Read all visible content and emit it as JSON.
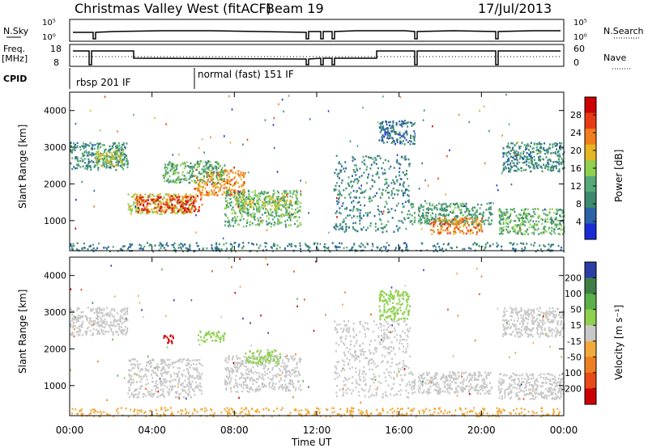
{
  "header": {
    "radar": "Christmas Valley West (fitACF)",
    "beam": "Beam 19",
    "date": "17/Jul/2013"
  },
  "status_panels": {
    "left_top": "N.Sky",
    "left_top_ticks": [
      "10^5",
      "10^0"
    ],
    "right_top": "N.Search",
    "right_top_ticks": [
      "10^5",
      "10^0"
    ],
    "left_mid": "Freq.",
    "left_mid_unit": "[MHz]",
    "left_mid_ticks": [
      "18",
      "8"
    ],
    "right_mid": "Nave",
    "right_mid_ticks": [
      "60",
      "0"
    ],
    "cpid_label": "CPID",
    "cpid_modes": [
      "rbsp 201 IF",
      "normal (fast) 151 IF"
    ]
  },
  "colors": {
    "power_scale": [
      "#1a2bd6",
      "#2c62a8",
      "#3d8a6e",
      "#55a878",
      "#8fd14f",
      "#e6b522",
      "#f07e1c",
      "#e83a16",
      "#cc0000"
    ],
    "velocity_scale": [
      "#2a3ea6",
      "#3f7f47",
      "#5cb04a",
      "#8fd14f",
      "#c8c8c8",
      "#f2a93b",
      "#ee7e22",
      "#e84a18",
      "#cc0000"
    ]
  },
  "chart_data": [
    {
      "type": "heatmap",
      "title": "",
      "xlabel": "Time UT",
      "ylabel": "Slant Range [km]",
      "x_ticks": [
        "00:00",
        "04:00",
        "08:00",
        "12:00",
        "16:00",
        "20:00",
        "00:00"
      ],
      "xlim_hours": [
        0,
        24
      ],
      "ylim": [
        180,
        4500
      ],
      "y_ticks": [
        "1000",
        "2000",
        "3000",
        "4000"
      ],
      "colorbar_label": "Power [dB]",
      "colorbar_ticks": [
        "4",
        "8",
        "12",
        "16",
        "20",
        "24",
        "28"
      ],
      "colorbar_range": [
        0,
        32
      ],
      "echo_regions": [
        {
          "t0": 0.0,
          "t1": 2.8,
          "r0": 2400,
          "r1": 3150,
          "v": 10
        },
        {
          "t0": 1.2,
          "t1": 2.6,
          "r0": 2500,
          "r1": 3000,
          "v": 17
        },
        {
          "t0": 2.8,
          "t1": 6.0,
          "r0": 1200,
          "r1": 1750,
          "v": 18
        },
        {
          "t0": 3.2,
          "t1": 6.4,
          "r0": 1250,
          "r1": 1700,
          "v": 27
        },
        {
          "t0": 6.0,
          "t1": 8.5,
          "r0": 1700,
          "r1": 2400,
          "v": 22
        },
        {
          "t0": 4.5,
          "t1": 7.5,
          "r0": 2050,
          "r1": 2650,
          "v": 12
        },
        {
          "t0": 7.5,
          "t1": 11.2,
          "r0": 850,
          "r1": 1850,
          "v": 13
        },
        {
          "t0": 8.0,
          "t1": 10.8,
          "r0": 1300,
          "r1": 1700,
          "v": 16
        },
        {
          "t0": 12.8,
          "t1": 16.5,
          "r0": 700,
          "r1": 2800,
          "v": 9
        },
        {
          "t0": 15.0,
          "t1": 16.8,
          "r0": 3100,
          "r1": 3750,
          "v": 7
        },
        {
          "t0": 16.5,
          "t1": 20.5,
          "r0": 900,
          "r1": 1500,
          "v": 11
        },
        {
          "t0": 17.5,
          "t1": 20.0,
          "r0": 650,
          "r1": 1100,
          "v": 23
        },
        {
          "t0": 20.8,
          "t1": 24.0,
          "r0": 650,
          "r1": 1350,
          "v": 13
        },
        {
          "t0": 21.0,
          "t1": 24.0,
          "r0": 2350,
          "r1": 3150,
          "v": 9
        },
        {
          "t0": 0.0,
          "t1": 24.0,
          "r0": 180,
          "r1": 420,
          "v": 8
        }
      ]
    },
    {
      "type": "heatmap",
      "title": "",
      "xlabel": "Time UT",
      "ylabel": "Slant Range [km]",
      "x_ticks": [
        "00:00",
        "04:00",
        "08:00",
        "12:00",
        "16:00",
        "20:00",
        "00:00"
      ],
      "xlim_hours": [
        0,
        24
      ],
      "ylim": [
        180,
        4500
      ],
      "y_ticks": [
        "1000",
        "2000",
        "3000",
        "4000"
      ],
      "colorbar_label": "Velocity [m s^-1]",
      "colorbar_ticks": [
        "200",
        "100",
        "50",
        "15",
        "-15",
        "-50",
        "-100",
        "-200"
      ],
      "colorbar_range": [
        -250,
        250
      ],
      "echo_regions": [
        {
          "t0": 0.0,
          "t1": 2.8,
          "r0": 2400,
          "r1": 3150,
          "v": 0
        },
        {
          "t0": 2.8,
          "t1": 6.4,
          "r0": 700,
          "r1": 1750,
          "v": 0
        },
        {
          "t0": 4.5,
          "t1": 5.0,
          "r0": 2150,
          "r1": 2400,
          "v": -220
        },
        {
          "t0": 6.2,
          "t1": 7.5,
          "r0": 2200,
          "r1": 2500,
          "v": 60
        },
        {
          "t0": 7.5,
          "t1": 11.2,
          "r0": 850,
          "r1": 1850,
          "v": 0
        },
        {
          "t0": 8.5,
          "t1": 10.2,
          "r0": 1600,
          "r1": 2000,
          "v": 40
        },
        {
          "t0": 12.8,
          "t1": 16.5,
          "r0": 700,
          "r1": 2800,
          "v": 5
        },
        {
          "t0": 15.0,
          "t1": 16.5,
          "r0": 2800,
          "r1": 3600,
          "v": 45
        },
        {
          "t0": 16.5,
          "t1": 20.5,
          "r0": 800,
          "r1": 1400,
          "v": 0
        },
        {
          "t0": 20.8,
          "t1": 24.0,
          "r0": 650,
          "r1": 1350,
          "v": 0
        },
        {
          "t0": 21.0,
          "t1": 24.0,
          "r0": 2350,
          "r1": 3150,
          "v": 0
        },
        {
          "t0": 0.0,
          "t1": 24.0,
          "r0": 180,
          "r1": 420,
          "v": -60
        }
      ]
    }
  ]
}
